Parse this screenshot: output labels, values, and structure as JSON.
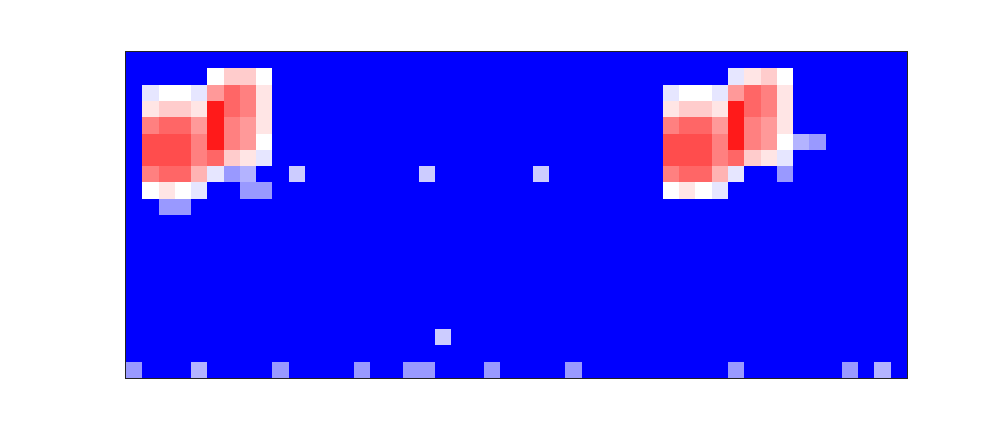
{
  "chart_data": {
    "type": "heatmap",
    "tick_labels": false,
    "xlim": [
      -0.5,
      47.5
    ],
    "ylim": [
      19.5,
      -0.5
    ],
    "zlim": [
      0,
      1
    ],
    "cells": [
      [
        0,
        0,
        0,
        0,
        0,
        0,
        0,
        0,
        0,
        0,
        0,
        0,
        0,
        0,
        0,
        0,
        0,
        0,
        0,
        0,
        0,
        0,
        0,
        0,
        0,
        0,
        0,
        0,
        0,
        0,
        0,
        0,
        0,
        0,
        0,
        0,
        0,
        0,
        0,
        0,
        0,
        0,
        0,
        0,
        0,
        0,
        0,
        0
      ],
      [
        0,
        0,
        0,
        0,
        0,
        0.5,
        0.6,
        0.6,
        0.5,
        0,
        0,
        0,
        0,
        0,
        0,
        0,
        0,
        0,
        0,
        0,
        0,
        0,
        0,
        0,
        0,
        0,
        0,
        0,
        0,
        0,
        0,
        0,
        0,
        0,
        0,
        0,
        0,
        0.45,
        0.55,
        0.6,
        0.5,
        0,
        0,
        0,
        0,
        0,
        0,
        0
      ],
      [
        0,
        0.45,
        0.5,
        0.5,
        0.45,
        0.7,
        0.8,
        0.75,
        0.55,
        0,
        0,
        0,
        0,
        0,
        0,
        0,
        0,
        0,
        0,
        0,
        0,
        0,
        0,
        0,
        0,
        0,
        0,
        0,
        0,
        0,
        0,
        0,
        0,
        0.45,
        0.5,
        0.5,
        0.45,
        0.7,
        0.8,
        0.75,
        0.55,
        0,
        0,
        0,
        0,
        0,
        0,
        0
      ],
      [
        0,
        0.55,
        0.6,
        0.6,
        0.55,
        0.95,
        0.8,
        0.75,
        0.55,
        0,
        0,
        0,
        0,
        0,
        0,
        0,
        0,
        0,
        0,
        0,
        0,
        0,
        0,
        0,
        0,
        0,
        0,
        0,
        0,
        0,
        0,
        0,
        0,
        0.55,
        0.6,
        0.6,
        0.55,
        0.95,
        0.8,
        0.75,
        0.55,
        0,
        0,
        0,
        0,
        0,
        0,
        0
      ],
      [
        0,
        0.75,
        0.8,
        0.8,
        0.7,
        0.95,
        0.75,
        0.7,
        0.55,
        0,
        0,
        0,
        0,
        0,
        0,
        0,
        0,
        0,
        0,
        0,
        0,
        0,
        0,
        0,
        0,
        0,
        0,
        0,
        0,
        0,
        0,
        0,
        0,
        0.75,
        0.8,
        0.8,
        0.7,
        0.95,
        0.75,
        0.7,
        0.55,
        0,
        0,
        0,
        0,
        0,
        0,
        0
      ],
      [
        0,
        0.85,
        0.85,
        0.85,
        0.75,
        0.95,
        0.75,
        0.7,
        0.5,
        0,
        0,
        0,
        0,
        0,
        0,
        0,
        0,
        0,
        0,
        0,
        0,
        0,
        0,
        0,
        0,
        0,
        0,
        0,
        0,
        0,
        0,
        0,
        0,
        0.85,
        0.85,
        0.85,
        0.75,
        0.95,
        0.75,
        0.7,
        0.5,
        0.35,
        0.3,
        0,
        0,
        0,
        0,
        0
      ],
      [
        0,
        0.85,
        0.85,
        0.85,
        0.75,
        0.8,
        0.6,
        0.55,
        0.45,
        0,
        0,
        0,
        0,
        0,
        0,
        0,
        0,
        0,
        0,
        0,
        0,
        0,
        0,
        0,
        0,
        0,
        0,
        0,
        0,
        0,
        0,
        0,
        0,
        0.85,
        0.85,
        0.85,
        0.75,
        0.8,
        0.6,
        0.55,
        0.45,
        0,
        0,
        0,
        0,
        0,
        0,
        0
      ],
      [
        0,
        0.75,
        0.8,
        0.8,
        0.65,
        0.45,
        0.3,
        0.35,
        0,
        0,
        0.4,
        0,
        0,
        0,
        0,
        0,
        0,
        0,
        0.4,
        0,
        0,
        0,
        0,
        0,
        0,
        0.4,
        0,
        0,
        0,
        0,
        0,
        0,
        0,
        0.75,
        0.8,
        0.8,
        0.65,
        0.45,
        0,
        0,
        0.3,
        0,
        0,
        0,
        0,
        0,
        0,
        0
      ],
      [
        0,
        0.5,
        0.55,
        0.5,
        0.45,
        0,
        0,
        0.3,
        0.3,
        0,
        0,
        0,
        0,
        0,
        0,
        0,
        0,
        0,
        0,
        0,
        0,
        0,
        0,
        0,
        0,
        0,
        0,
        0,
        0,
        0,
        0,
        0,
        0,
        0.5,
        0.55,
        0.5,
        0.45,
        0,
        0,
        0,
        0,
        0,
        0,
        0,
        0,
        0,
        0,
        0
      ],
      [
        0,
        0,
        0.3,
        0.3,
        0,
        0,
        0,
        0,
        0,
        0,
        0,
        0,
        0,
        0,
        0,
        0,
        0,
        0,
        0,
        0,
        0,
        0,
        0,
        0,
        0,
        0,
        0,
        0,
        0,
        0,
        0,
        0,
        0,
        0,
        0,
        0,
        0,
        0,
        0,
        0,
        0,
        0,
        0,
        0,
        0,
        0,
        0,
        0
      ],
      [
        0,
        0,
        0,
        0,
        0,
        0,
        0,
        0,
        0,
        0,
        0,
        0,
        0,
        0,
        0,
        0,
        0,
        0,
        0,
        0,
        0,
        0,
        0,
        0,
        0,
        0,
        0,
        0,
        0,
        0,
        0,
        0,
        0,
        0,
        0,
        0,
        0,
        0,
        0,
        0,
        0,
        0,
        0,
        0,
        0,
        0,
        0,
        0
      ],
      [
        0,
        0,
        0,
        0,
        0,
        0,
        0,
        0,
        0,
        0,
        0,
        0,
        0,
        0,
        0,
        0,
        0,
        0,
        0,
        0,
        0,
        0,
        0,
        0,
        0,
        0,
        0,
        0,
        0,
        0,
        0,
        0,
        0,
        0,
        0,
        0,
        0,
        0,
        0,
        0,
        0,
        0,
        0,
        0,
        0,
        0,
        0,
        0
      ],
      [
        0,
        0,
        0,
        0,
        0,
        0,
        0,
        0,
        0,
        0,
        0,
        0,
        0,
        0,
        0,
        0,
        0,
        0,
        0,
        0,
        0,
        0,
        0,
        0,
        0,
        0,
        0,
        0,
        0,
        0,
        0,
        0,
        0,
        0,
        0,
        0,
        0,
        0,
        0,
        0,
        0,
        0,
        0,
        0,
        0,
        0,
        0,
        0
      ],
      [
        0,
        0,
        0,
        0,
        0,
        0,
        0,
        0,
        0,
        0,
        0,
        0,
        0,
        0,
        0,
        0,
        0,
        0,
        0,
        0,
        0,
        0,
        0,
        0,
        0,
        0,
        0,
        0,
        0,
        0,
        0,
        0,
        0,
        0,
        0,
        0,
        0,
        0,
        0,
        0,
        0,
        0,
        0,
        0,
        0,
        0,
        0,
        0
      ],
      [
        0,
        0,
        0,
        0,
        0,
        0,
        0,
        0,
        0,
        0,
        0,
        0,
        0,
        0,
        0,
        0,
        0,
        0,
        0,
        0,
        0,
        0,
        0,
        0,
        0,
        0,
        0,
        0,
        0,
        0,
        0,
        0,
        0,
        0,
        0,
        0,
        0,
        0,
        0,
        0,
        0,
        0,
        0,
        0,
        0,
        0,
        0,
        0
      ],
      [
        0,
        0,
        0,
        0,
        0,
        0,
        0,
        0,
        0,
        0,
        0,
        0,
        0,
        0,
        0,
        0,
        0,
        0,
        0,
        0,
        0,
        0,
        0,
        0,
        0,
        0,
        0,
        0,
        0,
        0,
        0,
        0,
        0,
        0,
        0,
        0,
        0,
        0,
        0,
        0,
        0,
        0,
        0,
        0,
        0,
        0,
        0,
        0
      ],
      [
        0,
        0,
        0,
        0,
        0,
        0,
        0,
        0,
        0,
        0,
        0,
        0,
        0,
        0,
        0,
        0,
        0,
        0,
        0,
        0,
        0,
        0,
        0,
        0,
        0,
        0,
        0,
        0,
        0,
        0,
        0,
        0,
        0,
        0,
        0,
        0,
        0,
        0,
        0,
        0,
        0,
        0,
        0,
        0,
        0,
        0,
        0,
        0
      ],
      [
        0,
        0,
        0,
        0,
        0,
        0,
        0,
        0,
        0,
        0,
        0,
        0,
        0,
        0,
        0,
        0,
        0,
        0,
        0,
        0.4,
        0,
        0,
        0,
        0,
        0,
        0,
        0,
        0,
        0,
        0,
        0,
        0,
        0,
        0,
        0,
        0,
        0,
        0,
        0,
        0,
        0,
        0,
        0,
        0,
        0,
        0,
        0,
        0
      ],
      [
        0,
        0,
        0,
        0,
        0,
        0,
        0,
        0,
        0,
        0,
        0,
        0,
        0,
        0,
        0,
        0,
        0,
        0,
        0,
        0,
        0,
        0,
        0,
        0,
        0,
        0,
        0,
        0,
        0,
        0,
        0,
        0,
        0,
        0,
        0,
        0,
        0,
        0,
        0,
        0,
        0,
        0,
        0,
        0,
        0,
        0,
        0,
        0
      ],
      [
        0.3,
        0,
        0,
        0,
        0.35,
        0,
        0,
        0,
        0,
        0.3,
        0,
        0,
        0,
        0,
        0.3,
        0,
        0,
        0.3,
        0.3,
        0,
        0,
        0,
        0.3,
        0,
        0,
        0,
        0,
        0.3,
        0,
        0,
        0,
        0,
        0,
        0,
        0,
        0,
        0,
        0.3,
        0,
        0,
        0,
        0,
        0,
        0,
        0.3,
        0,
        0.35,
        0
      ]
    ]
  }
}
